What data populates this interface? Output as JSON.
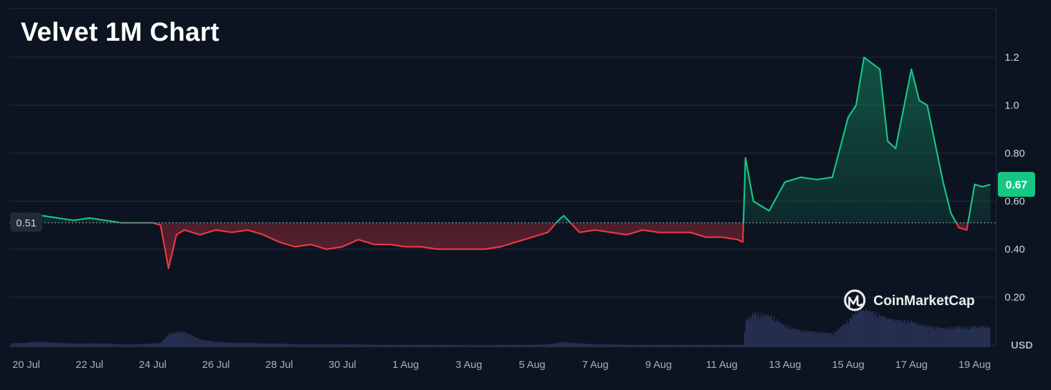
{
  "title": "Velvet 1M Chart",
  "watermark": "CoinMarketCap",
  "currency_label": "USD",
  "baseline_label": "0.51",
  "current_price_label": "0.67",
  "colors": {
    "background": "#0d1421",
    "up": "#16c784",
    "down": "#ea3943",
    "volume": "#2a3458",
    "grid": "#222a3a"
  },
  "chart_data": {
    "type": "area",
    "title": "Velvet 1M Chart",
    "ylabel": "USD",
    "ylim": [
      0,
      1.3
    ],
    "yticks": [
      0.2,
      0.4,
      0.6,
      0.8,
      1.0,
      1.2
    ],
    "ytick_labels": [
      "0.20",
      "0.40",
      "0.60",
      "0.80",
      "1.0",
      "1.2"
    ],
    "xtick_labels": [
      "20 Jul",
      "22 Jul",
      "24 Jul",
      "26 Jul",
      "28 Jul",
      "30 Jul",
      "1 Aug",
      "3 Aug",
      "5 Aug",
      "7 Aug",
      "9 Aug",
      "11 Aug",
      "13 Aug",
      "15 Aug",
      "17 Aug",
      "19 Aug"
    ],
    "baseline": 0.51,
    "current_price": 0.67,
    "grid": true,
    "series": [
      {
        "x": [
          "19 Jul 12:00",
          "20 Jul 00:00",
          "20 Jul 06:00",
          "20 Jul 12:00",
          "21 Jul 00:00",
          "21 Jul 12:00",
          "22 Jul 00:00",
          "22 Jul 12:00",
          "23 Jul 00:00",
          "23 Jul 12:00",
          "24 Jul 00:00",
          "24 Jul 06:00",
          "24 Jul 12:00",
          "24 Jul 18:00",
          "25 Jul 00:00",
          "25 Jul 12:00",
          "26 Jul 00:00",
          "26 Jul 12:00",
          "27 Jul 00:00",
          "27 Jul 12:00",
          "28 Jul 00:00",
          "28 Jul 12:00",
          "29 Jul 00:00",
          "29 Jul 12:00",
          "30 Jul 00:00",
          "30 Jul 12:00",
          "31 Jul 00:00",
          "31 Jul 12:00",
          "1 Aug 00:00",
          "1 Aug 12:00",
          "2 Aug 00:00",
          "2 Aug 12:00",
          "3 Aug 00:00",
          "3 Aug 12:00",
          "4 Aug 00:00",
          "4 Aug 12:00",
          "5 Aug 00:00",
          "5 Aug 12:00",
          "5 Aug 20:00",
          "6 Aug 00:00",
          "6 Aug 12:00",
          "7 Aug 00:00",
          "7 Aug 12:00",
          "8 Aug 00:00",
          "8 Aug 12:00",
          "9 Aug 00:00",
          "9 Aug 12:00",
          "10 Aug 00:00",
          "10 Aug 12:00",
          "11 Aug 00:00",
          "11 Aug 12:00",
          "11 Aug 16:00",
          "11 Aug 18:00",
          "12 Aug 00:00",
          "12 Aug 12:00",
          "13 Aug 00:00",
          "13 Aug 12:00",
          "14 Aug 00:00",
          "14 Aug 12:00",
          "15 Aug 00:00",
          "15 Aug 06:00",
          "15 Aug 12:00",
          "16 Aug 00:00",
          "16 Aug 06:00",
          "16 Aug 12:00",
          "17 Aug 00:00",
          "17 Aug 06:00",
          "17 Aug 12:00",
          "18 Aug 00:00",
          "18 Aug 06:00",
          "18 Aug 12:00",
          "18 Aug 18:00",
          "19 Aug 00:00",
          "19 Aug 06:00",
          "19 Aug 12:00"
        ],
        "y": [
          0.53,
          0.55,
          0.54,
          0.54,
          0.53,
          0.52,
          0.53,
          0.52,
          0.51,
          0.51,
          0.51,
          0.5,
          0.32,
          0.46,
          0.48,
          0.46,
          0.48,
          0.47,
          0.48,
          0.46,
          0.43,
          0.41,
          0.42,
          0.4,
          0.41,
          0.44,
          0.42,
          0.42,
          0.41,
          0.41,
          0.4,
          0.4,
          0.4,
          0.4,
          0.41,
          0.43,
          0.45,
          0.47,
          0.52,
          0.54,
          0.47,
          0.48,
          0.47,
          0.46,
          0.48,
          0.47,
          0.47,
          0.47,
          0.45,
          0.45,
          0.44,
          0.43,
          0.78,
          0.6,
          0.56,
          0.68,
          0.7,
          0.69,
          0.7,
          0.95,
          1.0,
          1.2,
          1.15,
          0.85,
          0.82,
          1.15,
          1.02,
          1.0,
          0.68,
          0.55,
          0.49,
          0.48,
          0.67,
          0.66,
          0.67
        ]
      }
    ],
    "volume": [
      0.05,
      0.06,
      0.07,
      0.07,
      0.06,
      0.05,
      0.05,
      0.05,
      0.04,
      0.04,
      0.05,
      0.06,
      0.18,
      0.2,
      0.2,
      0.1,
      0.07,
      0.06,
      0.06,
      0.05,
      0.05,
      0.04,
      0.04,
      0.04,
      0.04,
      0.04,
      0.03,
      0.03,
      0.03,
      0.03,
      0.03,
      0.03,
      0.02,
      0.02,
      0.03,
      0.03,
      0.03,
      0.04,
      0.06,
      0.07,
      0.05,
      0.04,
      0.04,
      0.03,
      0.03,
      0.03,
      0.03,
      0.03,
      0.03,
      0.03,
      0.03,
      0.03,
      0.35,
      0.45,
      0.42,
      0.28,
      0.22,
      0.2,
      0.18,
      0.35,
      0.48,
      0.5,
      0.42,
      0.38,
      0.36,
      0.34,
      0.3,
      0.28,
      0.25,
      0.26,
      0.27,
      0.26,
      0.27,
      0.27,
      0.26
    ]
  }
}
